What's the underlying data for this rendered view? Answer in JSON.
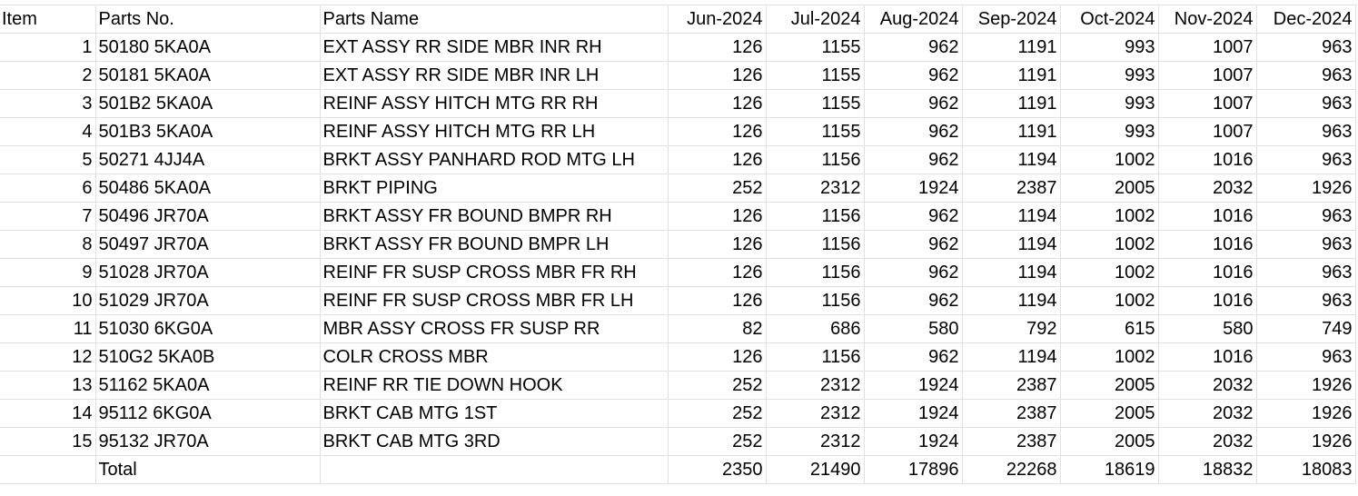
{
  "headers": [
    "Item",
    "Parts No.",
    "Parts Name",
    "Jun-2024",
    "Jul-2024",
    "Aug-2024",
    "Sep-2024",
    "Oct-2024",
    "Nov-2024",
    "Dec-2024"
  ],
  "rows": [
    [
      "1",
      "50180 5KA0A",
      "EXT ASSY RR SIDE MBR INR RH",
      "126",
      "1155",
      "962",
      "1191",
      "993",
      "1007",
      "963"
    ],
    [
      "2",
      "50181 5KA0A",
      "EXT ASSY RR SIDE MBR INR LH",
      "126",
      "1155",
      "962",
      "1191",
      "993",
      "1007",
      "963"
    ],
    [
      "3",
      "501B2 5KA0A",
      "REINF ASSY HITCH MTG RR RH",
      "126",
      "1155",
      "962",
      "1191",
      "993",
      "1007",
      "963"
    ],
    [
      "4",
      "501B3 5KA0A",
      "REINF ASSY HITCH MTG RR LH",
      "126",
      "1155",
      "962",
      "1191",
      "993",
      "1007",
      "963"
    ],
    [
      "5",
      "50271 4JJ4A",
      "BRKT ASSY PANHARD ROD MTG LH",
      "126",
      "1156",
      "962",
      "1194",
      "1002",
      "1016",
      "963"
    ],
    [
      "6",
      "50486 5KA0A",
      "BRKT PIPING",
      "252",
      "2312",
      "1924",
      "2387",
      "2005",
      "2032",
      "1926"
    ],
    [
      "7",
      "50496 JR70A",
      "BRKT ASSY FR BOUND BMPR RH",
      "126",
      "1156",
      "962",
      "1194",
      "1002",
      "1016",
      "963"
    ],
    [
      "8",
      "50497 JR70A",
      "BRKT ASSY FR BOUND BMPR LH",
      "126",
      "1156",
      "962",
      "1194",
      "1002",
      "1016",
      "963"
    ],
    [
      "9",
      "51028 JR70A",
      "REINF FR SUSP CROSS MBR FR RH",
      "126",
      "1156",
      "962",
      "1194",
      "1002",
      "1016",
      "963"
    ],
    [
      "10",
      "51029 JR70A",
      "REINF FR SUSP CROSS MBR FR LH",
      "126",
      "1156",
      "962",
      "1194",
      "1002",
      "1016",
      "963"
    ],
    [
      "11",
      "51030 6KG0A",
      "MBR ASSY CROSS FR SUSP RR",
      "82",
      "686",
      "580",
      "792",
      "615",
      "580",
      "749"
    ],
    [
      "12",
      "510G2 5KA0B",
      "COLR CROSS MBR",
      "126",
      "1156",
      "962",
      "1194",
      "1002",
      "1016",
      "963"
    ],
    [
      "13",
      "51162 5KA0A",
      "REINF RR TIE DOWN HOOK",
      "252",
      "2312",
      "1924",
      "2387",
      "2005",
      "2032",
      "1926"
    ],
    [
      "14",
      "95112 6KG0A",
      "BRKT CAB MTG 1ST",
      "252",
      "2312",
      "1924",
      "2387",
      "2005",
      "2032",
      "1926"
    ],
    [
      "15",
      "95132 JR70A",
      "BRKT CAB MTG 3RD",
      "252",
      "2312",
      "1924",
      "2387",
      "2005",
      "2032",
      "1926"
    ]
  ],
  "total": {
    "label": "Total",
    "values": [
      "2350",
      "21490",
      "17896",
      "22268",
      "18619",
      "18832",
      "18083"
    ]
  },
  "colors": {
    "gridline": "#e1e1e1",
    "text": "#000000",
    "background": "#ffffff"
  }
}
